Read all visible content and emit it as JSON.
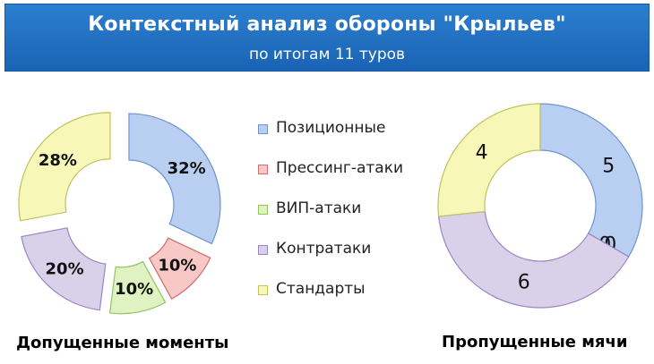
{
  "header": {
    "title": "Контекстный анализ обороны \"Крыльев\"",
    "subtitle": "по итогам 11 туров"
  },
  "legend": {
    "items": [
      {
        "label": "Позиционные",
        "color": "#b9cff2",
        "border": "#6f93cf"
      },
      {
        "label": "Прессинг-атаки",
        "color": "#f8c8c6",
        "border": "#d06e6b"
      },
      {
        "label": "ВИП-атаки",
        "color": "#dff2c2",
        "border": "#97c260"
      },
      {
        "label": "Контратаки",
        "color": "#d9d0ea",
        "border": "#9a86c2"
      },
      {
        "label": "Стандарты",
        "color": "#f7f7b8",
        "border": "#c2c25e"
      }
    ]
  },
  "chart_data": [
    {
      "type": "pie",
      "variant": "exploded donut",
      "title": "Допущенные моменты",
      "categories": [
        "Позиционные",
        "Прессинг-атаки",
        "ВИП-атаки",
        "Контратаки",
        "Стандарты"
      ],
      "values": [
        32,
        10,
        10,
        20,
        28
      ],
      "labels": [
        "32%",
        "10%",
        "10%",
        "20%",
        "28%"
      ],
      "colors": [
        "#b9cff2",
        "#f8c8c6",
        "#dff2c2",
        "#d9d0ea",
        "#f7f7b8"
      ],
      "borders": [
        "#6f93cf",
        "#d06e6b",
        "#97c260",
        "#9a86c2",
        "#c2c25e"
      ]
    },
    {
      "type": "pie",
      "variant": "donut",
      "title": "Пропущенные мячи",
      "categories": [
        "Позиционные",
        "Прессинг-атаки",
        "ВИП-атаки",
        "Контратаки",
        "Стандарты"
      ],
      "values": [
        5,
        0,
        0,
        6,
        4
      ],
      "labels": [
        "5",
        "0",
        "0",
        "6",
        "4"
      ],
      "colors": [
        "#b9cff2",
        "#f8c8c6",
        "#dff2c2",
        "#d9d0ea",
        "#f7f7b8"
      ],
      "borders": [
        "#6f93cf",
        "#d06e6b",
        "#97c260",
        "#9a86c2",
        "#c2c25e"
      ]
    }
  ]
}
